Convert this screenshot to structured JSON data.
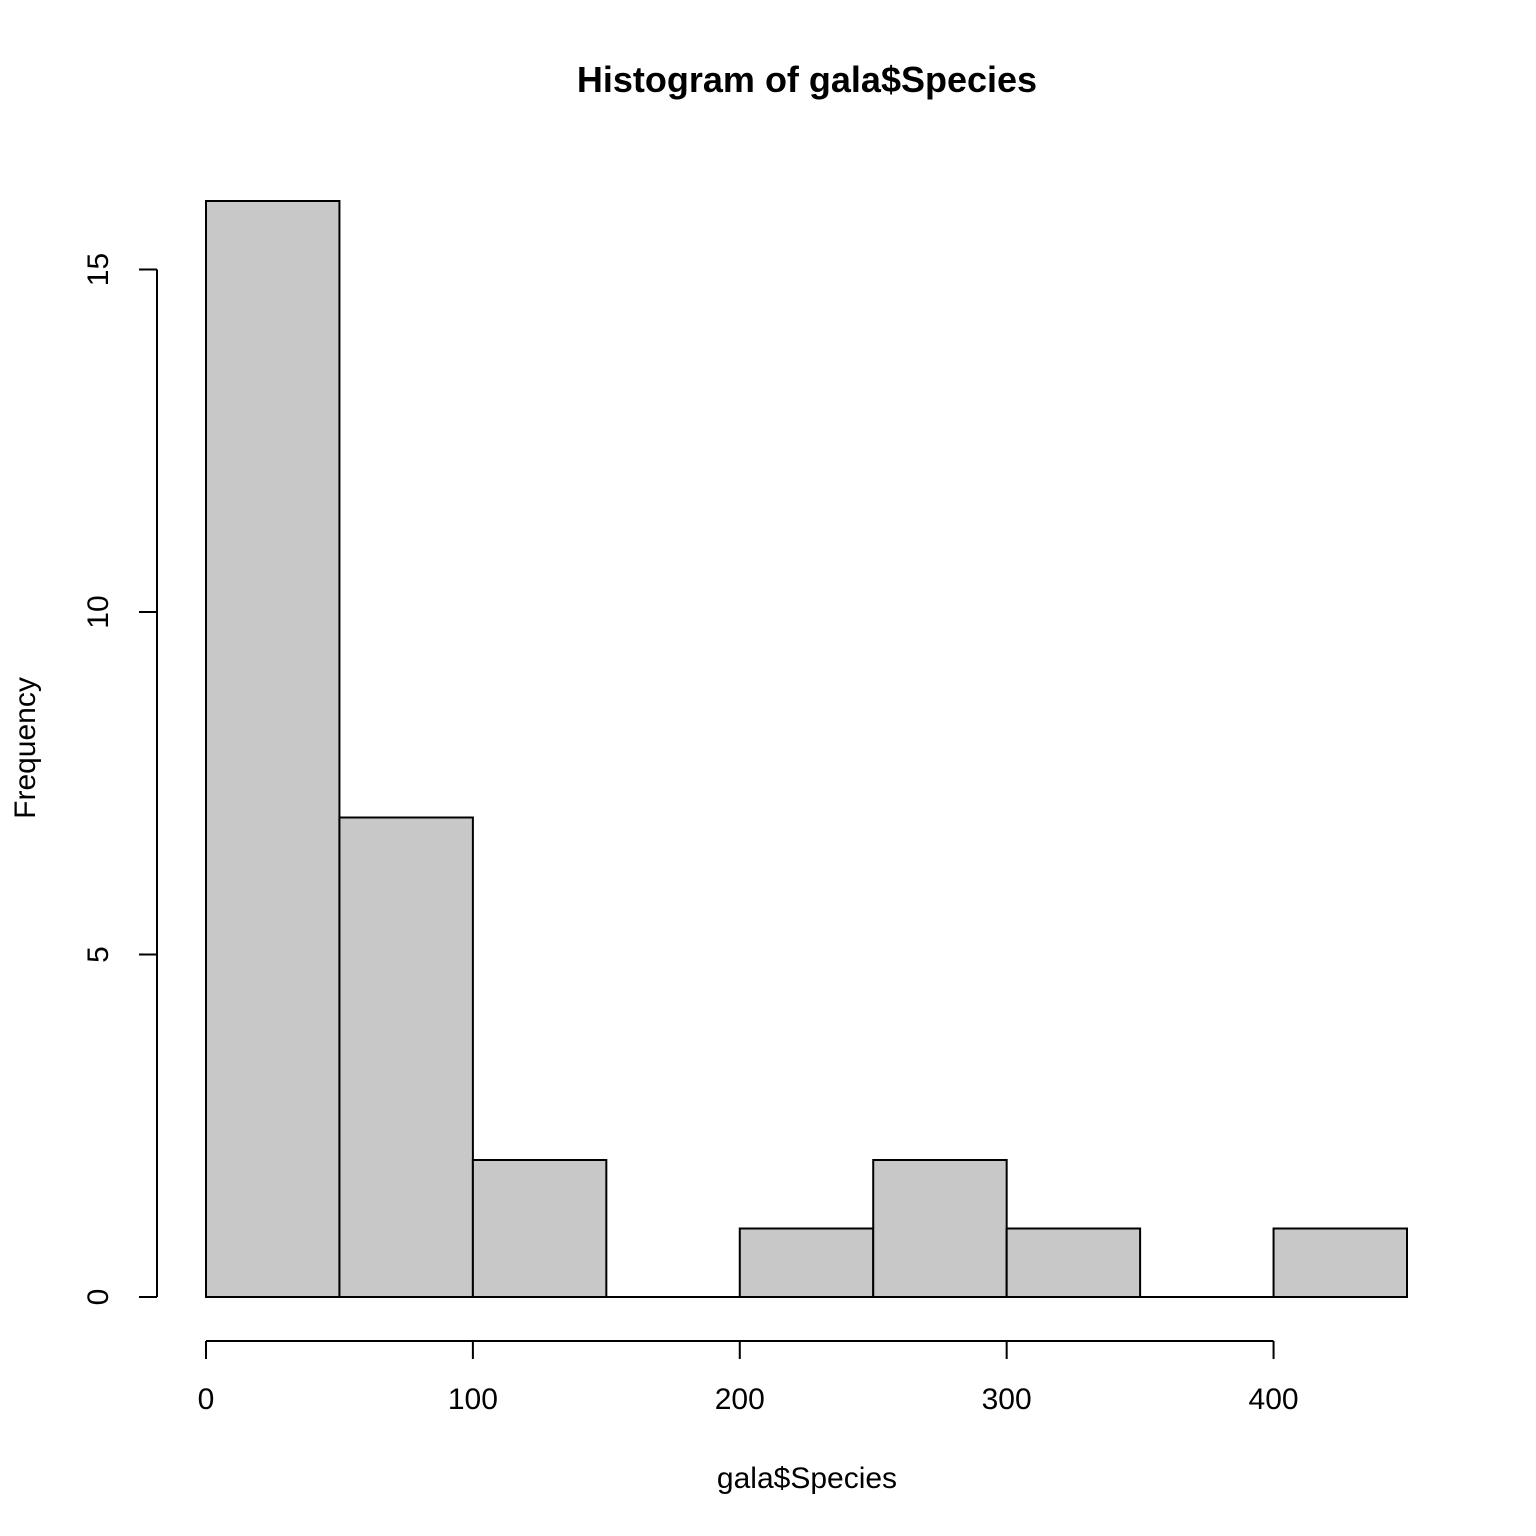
{
  "chart_data": {
    "type": "bar",
    "title": "Histogram of gala$Species",
    "xlabel": "gala$Species",
    "ylabel": "Frequency",
    "bins": [
      {
        "start": 0,
        "end": 50,
        "count": 16
      },
      {
        "start": 50,
        "end": 100,
        "count": 7
      },
      {
        "start": 100,
        "end": 150,
        "count": 2
      },
      {
        "start": 150,
        "end": 200,
        "count": 0
      },
      {
        "start": 200,
        "end": 250,
        "count": 1
      },
      {
        "start": 250,
        "end": 300,
        "count": 2
      },
      {
        "start": 300,
        "end": 350,
        "count": 1
      },
      {
        "start": 350,
        "end": 400,
        "count": 0
      },
      {
        "start": 400,
        "end": 450,
        "count": 1
      }
    ],
    "x_ticks": [
      "0",
      "100",
      "200",
      "300",
      "400"
    ],
    "y_ticks": [
      "0",
      "5",
      "10",
      "15"
    ],
    "xlim": [
      0,
      450
    ],
    "ylim": [
      0,
      16
    ],
    "grid": false,
    "legend": "none",
    "bar_color": "#c8c8c8",
    "edge_color": "#000000"
  }
}
